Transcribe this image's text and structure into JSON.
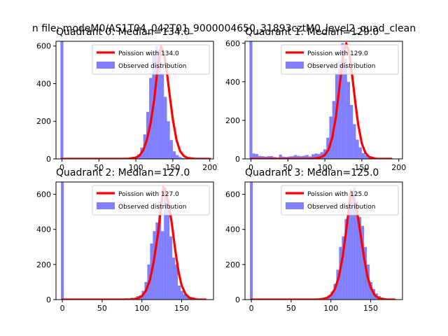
{
  "figure": {
    "suptitle": "n file: modeM0/AS1T04_042T01_9000004650_31893cztM0_level2_quad_clean",
    "colors": {
      "background": "#ffffff",
      "hist_fill": "#0000ff",
      "poisson_line": "#ff0000",
      "axis": "#000000",
      "legend_border": "#cccccc"
    }
  },
  "chart_data": [
    {
      "type": "bar",
      "title": "Quadrant 0: Median=134.0",
      "xlim": [
        -8,
        205
      ],
      "ylim": [
        0,
        625
      ],
      "xticks": [
        0,
        50,
        100,
        150,
        200
      ],
      "yticks": [
        0,
        200,
        400,
        600
      ],
      "median": 134.0,
      "legend": {
        "location": "upper-right",
        "line_label": "Poission with 134.0",
        "hist_label": "Observed distribution"
      },
      "hist": {
        "bin_width": 4,
        "edges": [
          -2,
          2,
          6,
          10,
          14,
          18,
          22,
          26,
          30,
          34,
          38,
          42,
          46,
          50,
          54,
          58,
          62,
          66,
          70,
          74,
          78,
          82,
          86,
          90,
          94,
          98,
          102,
          106,
          110,
          114,
          118,
          122,
          126,
          130,
          134,
          138,
          142,
          146,
          150,
          154,
          158,
          162,
          166,
          170,
          174,
          178,
          182,
          186,
          190,
          194,
          198,
          202
        ],
        "counts": [
          625,
          0,
          0,
          0,
          0,
          0,
          0,
          0,
          0,
          0,
          0,
          0,
          0,
          0,
          0,
          0,
          0,
          0,
          0,
          0,
          0,
          0,
          3,
          5,
          8,
          12,
          25,
          60,
          130,
          250,
          430,
          560,
          600,
          580,
          455,
          330,
          200,
          100,
          40,
          20,
          10,
          5,
          3,
          2,
          1,
          1,
          0,
          0,
          0,
          0,
          0
        ]
      },
      "poisson": {
        "x": [
          0,
          10,
          20,
          30,
          40,
          50,
          60,
          70,
          80,
          90,
          100,
          105,
          110,
          115,
          120,
          125,
          130,
          134,
          138,
          142,
          146,
          150,
          155,
          160,
          165,
          170,
          180,
          190,
          200
        ],
        "y": [
          0,
          0,
          0,
          0,
          0,
          0,
          0,
          0,
          0,
          1,
          7,
          18,
          46,
          102,
          190,
          320,
          500,
          600,
          560,
          460,
          330,
          210,
          100,
          40,
          15,
          5,
          0,
          0,
          0
        ]
      }
    },
    {
      "type": "bar",
      "title": "Quadrant 1: Median=129.0",
      "xlim": [
        -8,
        205
      ],
      "ylim": [
        0,
        610
      ],
      "xticks": [
        0,
        50,
        100,
        150,
        200
      ],
      "yticks": [
        0,
        200,
        400,
        600
      ],
      "median": 129.0,
      "legend": {
        "location": "upper-right",
        "line_label": "Poission with 129.0",
        "hist_label": "Observed distribution"
      },
      "hist": {
        "bin_width": 4,
        "edges": [
          -2,
          2,
          6,
          10,
          14,
          18,
          22,
          26,
          30,
          34,
          38,
          42,
          46,
          50,
          54,
          58,
          62,
          66,
          70,
          74,
          78,
          82,
          86,
          90,
          94,
          98,
          102,
          106,
          110,
          114,
          118,
          122,
          126,
          130,
          134,
          138,
          142,
          146,
          150,
          154,
          158,
          162,
          166,
          170,
          174,
          178,
          182,
          186,
          190,
          194
        ],
        "counts": [
          610,
          28,
          25,
          15,
          14,
          12,
          14,
          15,
          10,
          8,
          22,
          12,
          10,
          13,
          14,
          20,
          16,
          14,
          17,
          20,
          13,
          24,
          28,
          26,
          35,
          50,
          110,
          220,
          300,
          440,
          510,
          600,
          520,
          400,
          280,
          180,
          100,
          60,
          30,
          18,
          8,
          5,
          2,
          1,
          0,
          0,
          0,
          0,
          0
        ]
      },
      "poisson": {
        "x": [
          0,
          10,
          20,
          30,
          40,
          50,
          60,
          70,
          80,
          90,
          95,
          100,
          105,
          110,
          115,
          120,
          125,
          129,
          133,
          137,
          141,
          145,
          150,
          155,
          160,
          170,
          180,
          190
        ],
        "y": [
          0,
          0,
          0,
          0,
          0,
          0,
          0,
          0,
          0,
          4,
          10,
          20,
          48,
          110,
          220,
          380,
          540,
          600,
          550,
          430,
          300,
          180,
          80,
          30,
          10,
          0,
          0,
          0
        ]
      }
    },
    {
      "type": "bar",
      "title": "Quadrant 2: Median=127.0",
      "xlim": [
        -8,
        190
      ],
      "ylim": [
        0,
        670
      ],
      "xticks": [
        0,
        50,
        100,
        150
      ],
      "yticks": [
        0,
        200,
        400,
        600
      ],
      "median": 127.0,
      "legend": {
        "location": "upper-right",
        "line_label": "Poission with 127.0",
        "hist_label": "Observed distribution"
      },
      "hist": {
        "bin_width": 3.5,
        "edges": [
          -1.75,
          1.75,
          5.25,
          8.75,
          12.25,
          15.75,
          19.25,
          22.75,
          26.25,
          29.75,
          33.25,
          36.75,
          40.25,
          43.75,
          47.25,
          50.75,
          54.25,
          57.75,
          61.25,
          64.75,
          68.25,
          71.75,
          75.25,
          78.75,
          82.25,
          85.75,
          89.25,
          92.75,
          96.25,
          99.75,
          103.25,
          106.75,
          110.25,
          113.75,
          117.25,
          120.75,
          124.25,
          127.75,
          131.25,
          134.75,
          138.25,
          141.75,
          145.25,
          148.75,
          152.25,
          155.75,
          159.25,
          162.75,
          166.25,
          169.75,
          173.25,
          176.75,
          180.25
        ],
        "counts": [
          670,
          0,
          0,
          0,
          0,
          0,
          0,
          0,
          0,
          0,
          0,
          0,
          0,
          0,
          0,
          0,
          0,
          0,
          0,
          0,
          0,
          5,
          3,
          8,
          5,
          10,
          8,
          20,
          25,
          50,
          100,
          200,
          320,
          390,
          440,
          560,
          390,
          640,
          510,
          360,
          240,
          200,
          80,
          50,
          30,
          20,
          10,
          5,
          2,
          1,
          0,
          0
        ]
      },
      "poisson": {
        "x": [
          0,
          20,
          40,
          60,
          70,
          80,
          85,
          90,
          95,
          100,
          105,
          110,
          115,
          120,
          124,
          127,
          130,
          134,
          138,
          142,
          146,
          150,
          155,
          160,
          170,
          180
        ],
        "y": [
          0,
          0,
          0,
          0,
          0,
          0,
          1,
          3,
          8,
          20,
          50,
          110,
          220,
          370,
          520,
          640,
          610,
          540,
          420,
          280,
          160,
          80,
          30,
          10,
          0,
          0
        ]
      }
    },
    {
      "type": "bar",
      "title": "Quadrant 3: Median=125.0",
      "xlim": [
        -8,
        190
      ],
      "ylim": [
        0,
        670
      ],
      "xticks": [
        0,
        50,
        100,
        150
      ],
      "yticks": [
        0,
        200,
        400,
        600
      ],
      "median": 125.0,
      "legend": {
        "location": "upper-right",
        "line_label": "Poission with 125.0",
        "hist_label": "Observed distribution"
      },
      "hist": {
        "bin_width": 3.5,
        "edges": [
          -1.75,
          1.75,
          5.25,
          8.75,
          12.25,
          15.75,
          19.25,
          22.75,
          26.25,
          29.75,
          33.25,
          36.75,
          40.25,
          43.75,
          47.25,
          50.75,
          54.25,
          57.75,
          61.25,
          64.75,
          68.25,
          71.75,
          75.25,
          78.75,
          82.25,
          85.75,
          89.25,
          92.75,
          96.25,
          99.75,
          103.25,
          106.75,
          110.25,
          113.75,
          117.25,
          120.75,
          124.25,
          127.75,
          131.25,
          134.75,
          138.25,
          141.75,
          145.25,
          148.75,
          152.25,
          155.75,
          159.25,
          162.75,
          166.25,
          169.75,
          173.25,
          176.75,
          180.25
        ],
        "counts": [
          670,
          0,
          0,
          0,
          0,
          0,
          0,
          0,
          0,
          0,
          0,
          0,
          0,
          0,
          0,
          0,
          0,
          0,
          0,
          0,
          0,
          3,
          2,
          5,
          4,
          6,
          10,
          15,
          25,
          45,
          90,
          170,
          300,
          360,
          460,
          540,
          600,
          640,
          560,
          470,
          420,
          300,
          200,
          100,
          60,
          35,
          20,
          10,
          5,
          2,
          1,
          0
        ]
      },
      "poisson": {
        "x": [
          0,
          20,
          40,
          60,
          70,
          80,
          85,
          90,
          95,
          100,
          105,
          110,
          115,
          120,
          125,
          130,
          134,
          138,
          142,
          146,
          150,
          155,
          160,
          170,
          180
        ],
        "y": [
          0,
          0,
          0,
          0,
          0,
          0,
          1,
          4,
          10,
          25,
          60,
          130,
          250,
          420,
          620,
          560,
          470,
          350,
          230,
          130,
          70,
          25,
          8,
          0,
          0
        ]
      }
    }
  ]
}
